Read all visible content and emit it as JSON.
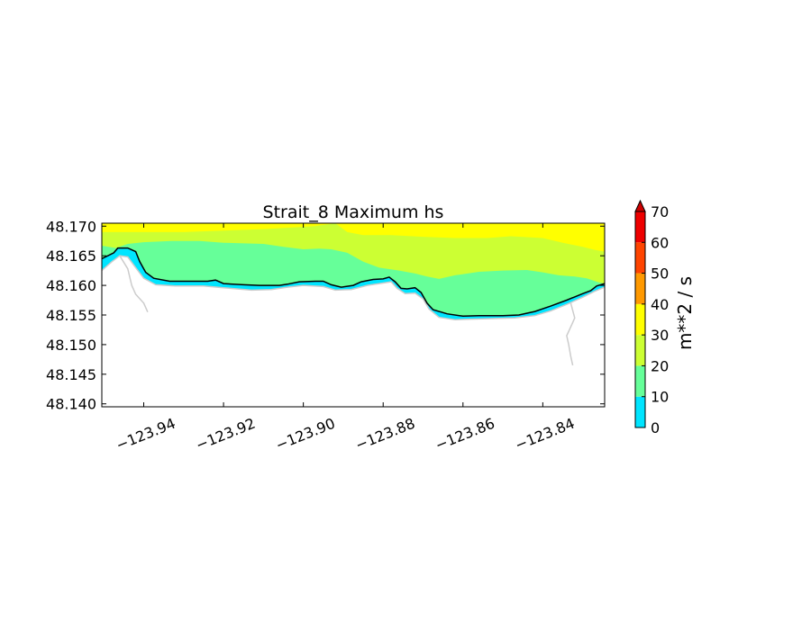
{
  "chart_data": {
    "type": "heatmap",
    "title": "Strait_8 Maximum hs",
    "xlabel": "",
    "ylabel": "",
    "xlim": [
      -123.9505,
      -123.8245
    ],
    "ylim": [
      48.1395,
      48.1705
    ],
    "x_ticks": [
      -123.94,
      -123.92,
      -123.9,
      -123.88,
      -123.86,
      -123.84
    ],
    "x_tick_labels": [
      "−123.94",
      "−123.92",
      "−123.90",
      "−123.88",
      "−123.86",
      "−123.84"
    ],
    "y_ticks": [
      48.17,
      48.165,
      48.16,
      48.155,
      48.15,
      48.145,
      48.14
    ],
    "y_tick_labels": [
      "48.170",
      "48.165",
      "48.160",
      "48.155",
      "48.150",
      "48.145",
      "48.140"
    ],
    "grid": false,
    "colorbar": {
      "label": "m**2 / s",
      "levels": [
        0,
        10,
        20,
        30,
        40,
        50,
        60,
        70
      ],
      "tick_labels": [
        "0",
        "10",
        "20",
        "30",
        "40",
        "50",
        "60",
        "70"
      ],
      "colors": [
        "#00e5ff",
        "#66ff99",
        "#ccff33",
        "#ffff00",
        "#ff9900",
        "#ff4400",
        "#ee0000"
      ],
      "extend": "max",
      "extend_color": "#cc0000"
    },
    "coastline_color": "#000000",
    "shoreline_color": "#cccccc",
    "bands": [
      {
        "range": "30-40",
        "color": "#ffff00"
      },
      {
        "range": "20-30",
        "color": "#ccff33"
      },
      {
        "range": "10-20",
        "color": "#66ff99"
      },
      {
        "range": "0-10",
        "color": "#00e5ff"
      }
    ],
    "coastline": [
      [
        -123.9505,
        48.1645
      ],
      [
        -123.9475,
        48.1655
      ],
      [
        -123.9465,
        48.1663
      ],
      [
        -123.944,
        48.1663
      ],
      [
        -123.942,
        48.1657
      ],
      [
        -123.941,
        48.164
      ],
      [
        -123.9395,
        48.1622
      ],
      [
        -123.9375,
        48.1612
      ],
      [
        -123.9335,
        48.1607
      ],
      [
        -123.924,
        48.1607
      ],
      [
        -123.922,
        48.1609
      ],
      [
        -123.92,
        48.1603
      ],
      [
        -123.915,
        48.1601
      ],
      [
        -123.911,
        48.16
      ],
      [
        -123.906,
        48.16
      ],
      [
        -123.904,
        48.1602
      ],
      [
        -123.901,
        48.1606
      ],
      [
        -123.897,
        48.1607
      ],
      [
        -123.895,
        48.1607
      ],
      [
        -123.893,
        48.1601
      ],
      [
        -123.8905,
        48.1597
      ],
      [
        -123.8875,
        48.16
      ],
      [
        -123.8855,
        48.1606
      ],
      [
        -123.8825,
        48.161
      ],
      [
        -123.88,
        48.1611
      ],
      [
        -123.8785,
        48.1614
      ],
      [
        -123.877,
        48.1606
      ],
      [
        -123.8755,
        48.1595
      ],
      [
        -123.874,
        48.1594
      ],
      [
        -123.872,
        48.1596
      ],
      [
        -123.8705,
        48.1588
      ],
      [
        -123.869,
        48.157
      ],
      [
        -123.8675,
        48.1559
      ],
      [
        -123.864,
        48.1552
      ],
      [
        -123.86,
        48.1548
      ],
      [
        -123.856,
        48.1549
      ],
      [
        -123.85,
        48.1549
      ],
      [
        -123.846,
        48.155
      ],
      [
        -123.842,
        48.1556
      ],
      [
        -123.838,
        48.1565
      ],
      [
        -123.834,
        48.1575
      ],
      [
        -123.83,
        48.1586
      ],
      [
        -123.828,
        48.1591
      ],
      [
        -123.8265,
        48.1599
      ],
      [
        -123.8245,
        48.1603
      ]
    ],
    "boundary_30": [
      [
        -123.9505,
        48.169
      ],
      [
        -123.93,
        48.169
      ],
      [
        -123.91,
        48.1695
      ],
      [
        -123.897,
        48.17
      ],
      [
        -123.892,
        48.1705
      ]
    ],
    "boundary_30_upper": [
      [
        -123.892,
        48.1705
      ],
      [
        -123.889,
        48.169
      ],
      [
        -123.885,
        48.1685
      ],
      [
        -123.878,
        48.1685
      ],
      [
        -123.87,
        48.1682
      ],
      [
        -123.862,
        48.168
      ],
      [
        -123.854,
        48.168
      ],
      [
        -123.848,
        48.1683
      ],
      [
        -123.84,
        48.168
      ],
      [
        -123.835,
        48.1672
      ],
      [
        -123.83,
        48.1665
      ],
      [
        -123.827,
        48.166
      ],
      [
        -123.8245,
        48.1657
      ]
    ],
    "boundary_20": [
      [
        -123.9505,
        48.1667
      ],
      [
        -123.947,
        48.1663
      ],
      [
        -123.944,
        48.167
      ],
      [
        -123.94,
        48.1673
      ],
      [
        -123.933,
        48.1675
      ],
      [
        -123.926,
        48.1675
      ],
      [
        -123.92,
        48.1672
      ],
      [
        -123.915,
        48.1671
      ],
      [
        -123.91,
        48.167
      ],
      [
        -123.905,
        48.1665
      ],
      [
        -123.9,
        48.1661
      ],
      [
        -123.896,
        48.1662
      ],
      [
        -123.893,
        48.1661
      ],
      [
        -123.889,
        48.1655
      ],
      [
        -123.885,
        48.164
      ],
      [
        -123.881,
        48.163
      ],
      [
        -123.876,
        48.1625
      ],
      [
        -123.872,
        48.162
      ],
      [
        -123.869,
        48.1615
      ],
      [
        -123.866,
        48.1611
      ],
      [
        -123.862,
        48.1617
      ],
      [
        -123.856,
        48.1623
      ],
      [
        -123.85,
        48.1625
      ],
      [
        -123.844,
        48.1626
      ],
      [
        -123.84,
        48.1622
      ],
      [
        -123.836,
        48.1617
      ],
      [
        -123.832,
        48.1615
      ],
      [
        -123.829,
        48.1612
      ],
      [
        -123.826,
        48.1605
      ],
      [
        -123.8245,
        48.1603
      ]
    ],
    "shoreline_light": [
      [
        -123.9505,
        48.1625
      ],
      [
        -123.948,
        48.164
      ],
      [
        -123.946,
        48.165
      ],
      [
        -123.944,
        48.1648
      ],
      [
        -123.942,
        48.163
      ],
      [
        -123.94,
        48.1612
      ],
      [
        -123.937,
        48.1601
      ],
      [
        -123.932,
        48.1599
      ],
      [
        -123.925,
        48.1599
      ],
      [
        -123.92,
        48.1596
      ],
      [
        -123.913,
        48.1592
      ],
      [
        -123.908,
        48.1593
      ],
      [
        -123.904,
        48.1597
      ],
      [
        -123.9,
        48.16
      ],
      [
        -123.895,
        48.1598
      ],
      [
        -123.892,
        48.1592
      ],
      [
        -123.888,
        48.1593
      ],
      [
        -123.884,
        48.16
      ],
      [
        -123.88,
        48.1604
      ],
      [
        -123.878,
        48.1606
      ],
      [
        -123.8765,
        48.1595
      ],
      [
        -123.8745,
        48.1586
      ],
      [
        -123.872,
        48.1587
      ],
      [
        -123.87,
        48.1577
      ],
      [
        -123.8685,
        48.156
      ],
      [
        -123.866,
        48.1546
      ],
      [
        -123.862,
        48.1542
      ],
      [
        -123.858,
        48.1543
      ],
      [
        -123.852,
        48.1544
      ],
      [
        -123.847,
        48.1545
      ],
      [
        -123.842,
        48.1549
      ],
      [
        -123.838,
        48.1557
      ],
      [
        -123.834,
        48.1568
      ],
      [
        -123.83,
        48.158
      ],
      [
        -123.827,
        48.159
      ],
      [
        -123.8245,
        48.1597
      ]
    ],
    "creek_west": [
      [
        -123.946,
        48.165
      ],
      [
        -123.944,
        48.1628
      ],
      [
        -123.943,
        48.16
      ],
      [
        -123.942,
        48.1585
      ],
      [
        -123.94,
        48.157
      ],
      [
        -123.939,
        48.1555
      ]
    ],
    "creek_east": [
      [
        -123.833,
        48.157
      ],
      [
        -123.832,
        48.1545
      ],
      [
        -123.833,
        48.153
      ],
      [
        -123.834,
        48.1515
      ],
      [
        -123.8335,
        48.15
      ],
      [
        -123.833,
        48.148
      ],
      [
        -123.8325,
        48.1465
      ]
    ]
  }
}
